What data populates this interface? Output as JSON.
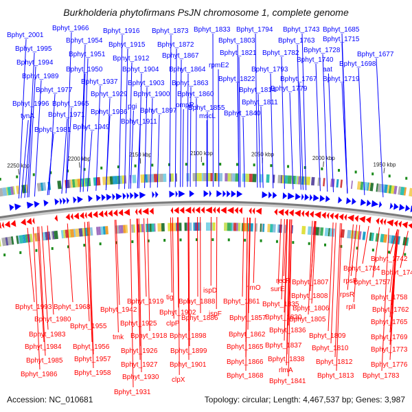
{
  "title": "Burkholderia phytofirmans PsJN chromosome 1, complete genome",
  "accession": "Accession: NC_010681",
  "summary": "Topology: circular; Length: 4,467,537 bp; Genes: 3,987",
  "colors": {
    "forward": "#0000ff",
    "reverse": "#ff0000",
    "backbone": "#7a7a7a"
  },
  "ticks": [
    "1950 kbp",
    "2000 kbp",
    "2050 kbp",
    "2100 kbp",
    "2150 kbp",
    "2200 kbp",
    "2250 kbp"
  ],
  "labels_top": [
    "Bphyt_2001",
    "Bphyt_1966",
    "Bphyt_1916",
    "Bphyt_1873",
    "Bphyt_1833",
    "Bphyt_1794",
    "Bphyt_1743",
    "Bphyt_1685",
    "Bphyt_1954",
    "Bphyt_1915",
    "Bphyt_1872",
    "Bphyt_1803",
    "Bphyt_1763",
    "Bphyt_1715",
    "Bphyt_1995",
    "Bphyt_1951",
    "Bphyt_1912",
    "Bphyt_1867",
    "Bphyt_1821",
    "Bphyt_1782",
    "Bphyt_1728",
    "Bphyt_1677",
    "Bphyt_1994",
    "Bphyt_1950",
    "Bphyt_1904",
    "Bphyt_1864",
    "rpmE2",
    "Bphyt_1740",
    "Bphyt_1698",
    "Bphyt_1989",
    "Bphyt_1937",
    "Bphyt_1903",
    "Bphyt_1863",
    "Bphyt_1822",
    "Bphyt_1793",
    "aat",
    "Bphyt_1977",
    "Bphyt_1929",
    "Bphyt_1900",
    "Bphyt_1860",
    "Bphyt_1814",
    "Bphyt_1767",
    "Bphyt_1719",
    "Bphyt_1996",
    "Bphyt_1965",
    "pgi",
    "ompR",
    "Bphyt_1855",
    "Bphyt_1811",
    "Bphyt_1779",
    "tynA",
    "Bphyt_1971",
    "Bphyt_1936",
    "Bphyt_1897",
    "mscL",
    "Bphyt_1840",
    "Bphyt_1981",
    "Bphyt_1949",
    "Bphyt_1911"
  ],
  "labels_bottom": [
    "Bphyt_1742",
    "Bphyt_1784",
    "Bphyt_1746",
    "Bphyt_1757",
    "rpsF",
    "Bphyt_1807",
    "recR",
    "rimO",
    "ispD",
    "tig",
    "Bphyt_1919",
    "rpsR",
    "Bphyt_1808",
    "surE",
    "Bphyt_1861",
    "Bphyt_1888",
    "Bphyt_1942",
    "Bphyt_1968",
    "Bphyt_1993",
    "Bphyt_1758",
    "rplI",
    "Bphyt_1806",
    "Bphyt_1835",
    "ispF",
    "Bphyt_1902",
    "Bphyt_1980",
    "Bphyt_1762",
    "Bphyt_1805",
    "Bphyt_1830",
    "Bphyt_1857",
    "Bphyt_1886",
    "clpP",
    "Bphyt_1925",
    "Bphyt_1955",
    "Bphyt_1765",
    "Bphyt_1836",
    "Bphyt_1862",
    "Bphyt_1898",
    "Bphyt_1918",
    "tmk",
    "Bphyt_1983",
    "Bphyt_1769",
    "Bphyt_1809",
    "Bphyt_1837",
    "Bphyt_1865",
    "Bphyt_1899",
    "Bphyt_1926",
    "Bphyt_1956",
    "Bphyt_1984",
    "Bphyt_1773",
    "Bphyt_1810",
    "Bphyt_1838",
    "Bphyt_1866",
    "Bphyt_1901",
    "Bphyt_1927",
    "Bphyt_1957",
    "Bphyt_1985",
    "Bphyt_1776",
    "Bphyt_1812",
    "rlmA",
    "Bphyt_1868",
    "clpX",
    "Bphyt_1930",
    "Bphyt_1958",
    "Bphyt_1986",
    "Bphyt_1783",
    "Bphyt_1813",
    "Bphyt_1841",
    "Bphyt_1931"
  ]
}
